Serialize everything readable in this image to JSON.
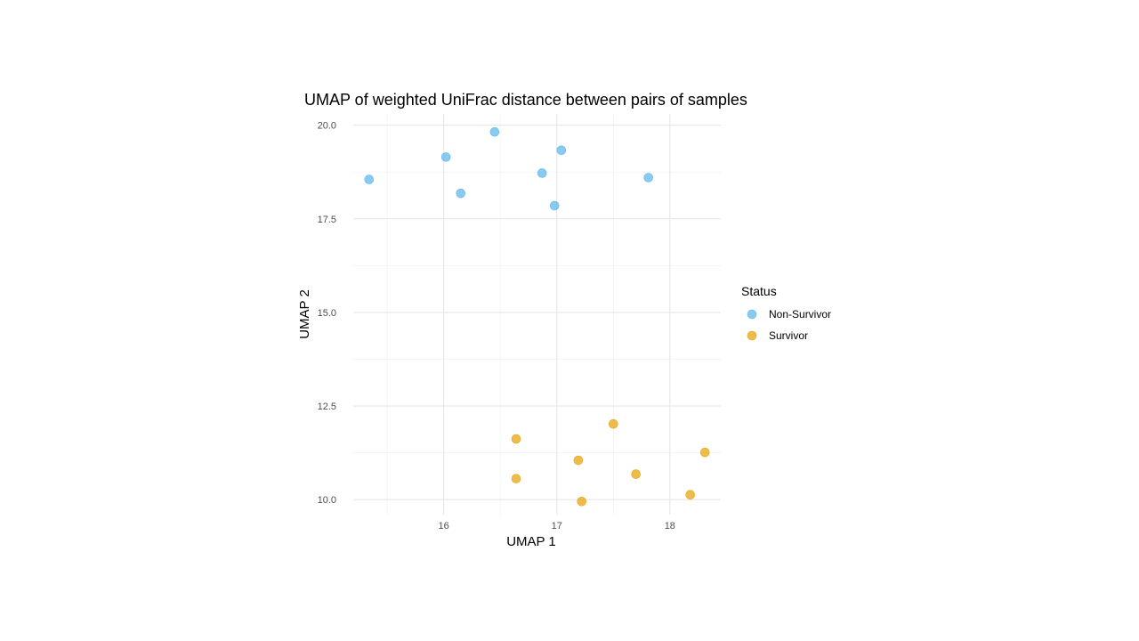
{
  "chart_data": {
    "type": "scatter",
    "title": "UMAP of weighted UniFrac distance between pairs of samples",
    "xlabel": "UMAP 1",
    "ylabel": "UMAP 2",
    "xlim": [
      15.2,
      18.45
    ],
    "ylim": [
      9.6,
      20.3
    ],
    "x_ticks": [
      16,
      17,
      18
    ],
    "x_tick_labels": [
      "16",
      "17",
      "18"
    ],
    "y_ticks": [
      10.0,
      12.5,
      15.0,
      17.5,
      20.0
    ],
    "y_tick_labels": [
      "10.0",
      "12.5",
      "15.0",
      "17.5",
      "20.0"
    ],
    "grid": true,
    "legend": {
      "title": "Status",
      "position": "right",
      "entries": [
        "Non-Survivor",
        "Survivor"
      ]
    },
    "series": [
      {
        "name": "Non-Survivor",
        "color": "#56B4E9",
        "points": [
          {
            "x": 15.34,
            "y": 18.55
          },
          {
            "x": 16.02,
            "y": 19.15
          },
          {
            "x": 16.15,
            "y": 18.18
          },
          {
            "x": 16.45,
            "y": 19.82
          },
          {
            "x": 16.87,
            "y": 18.72
          },
          {
            "x": 16.98,
            "y": 17.85
          },
          {
            "x": 17.04,
            "y": 19.33
          },
          {
            "x": 17.81,
            "y": 18.6
          }
        ]
      },
      {
        "name": "Survivor",
        "color": "#E69F00",
        "points": [
          {
            "x": 16.64,
            "y": 11.62
          },
          {
            "x": 16.64,
            "y": 10.56
          },
          {
            "x": 17.19,
            "y": 11.05
          },
          {
            "x": 17.22,
            "y": 9.95
          },
          {
            "x": 17.5,
            "y": 12.02
          },
          {
            "x": 17.7,
            "y": 10.68
          },
          {
            "x": 18.18,
            "y": 10.13
          },
          {
            "x": 18.31,
            "y": 11.26
          }
        ]
      }
    ]
  }
}
